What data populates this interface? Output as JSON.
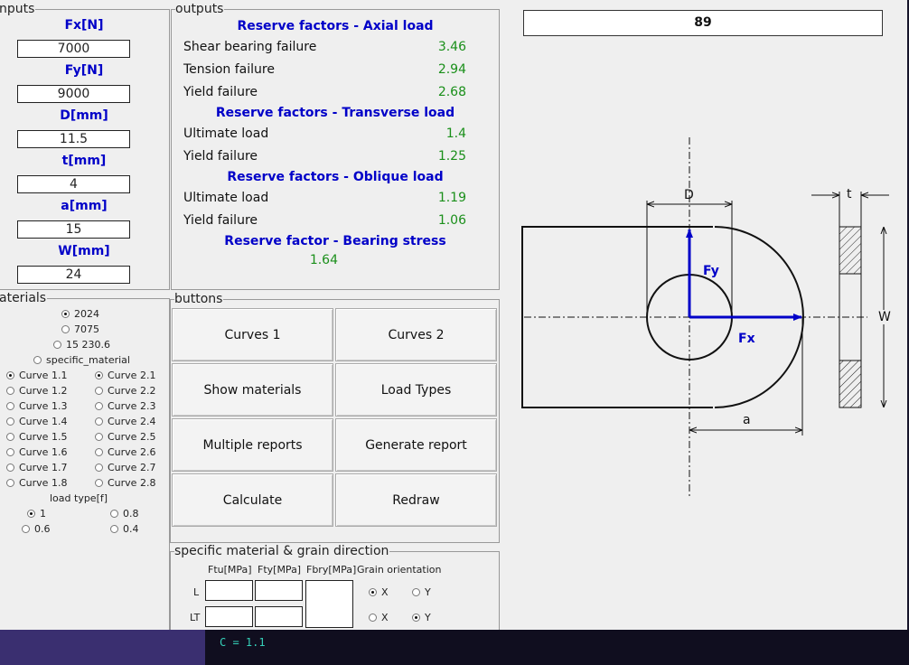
{
  "inputs": {
    "title": "nputs",
    "fields": [
      {
        "label": "Fx[N]",
        "value": "7000"
      },
      {
        "label": "Fy[N]",
        "value": "9000"
      },
      {
        "label": "D[mm]",
        "value": "11.5"
      },
      {
        "label": "t[mm]",
        "value": "4"
      },
      {
        "label": "a[mm]",
        "value": "15"
      },
      {
        "label": "W[mm]",
        "value": "24"
      }
    ]
  },
  "outputs": {
    "title": "outputs",
    "axial_title": "Reserve factors - Axial load",
    "axial": [
      {
        "label": "Shear bearing failure",
        "value": "3.46"
      },
      {
        "label": "Tension failure",
        "value": "2.94"
      },
      {
        "label": "Yield failure",
        "value": "2.68"
      }
    ],
    "transverse_title": "Reserve factors - Transverse load",
    "transverse": [
      {
        "label": "Ultimate load",
        "value": "1.4"
      },
      {
        "label": "Yield failure",
        "value": "1.25"
      }
    ],
    "oblique_title": "Reserve factors - Oblique load",
    "oblique": [
      {
        "label": "Ultimate load",
        "value": "1.19"
      },
      {
        "label": "Yield failure",
        "value": "1.06"
      }
    ],
    "bearing_title": "Reserve factor - Bearing stress",
    "bearing_value": "1.64"
  },
  "materials": {
    "title": "aterials",
    "options": [
      "2024",
      "7075",
      "15 230.6",
      "specific_material"
    ],
    "selected": "2024",
    "curves_1": [
      "Curve 1.1",
      "Curve 1.2",
      "Curve 1.3",
      "Curve 1.4",
      "Curve 1.5",
      "Curve 1.6",
      "Curve 1.7",
      "Curve 1.8"
    ],
    "curves_2": [
      "Curve 2.1",
      "Curve 2.2",
      "Curve 2.3",
      "Curve 2.4",
      "Curve 2.5",
      "Curve 2.6",
      "Curve 2.7",
      "Curve 2.8"
    ],
    "selected_curve_1": "Curve 1.1",
    "selected_curve_2": "Curve 2.1",
    "load_type_label": "load type[f]",
    "load_types": [
      "1",
      "0.8",
      "0.6",
      "0.4"
    ],
    "selected_load_type": "1"
  },
  "buttons": {
    "title": "buttons",
    "curves1": "Curves 1",
    "curves2": "Curves 2",
    "show_materials": "Show materials",
    "load_types": "Load Types",
    "multiple_reports": "Multiple reports",
    "generate_report": "Generate report",
    "calculate": "Calculate",
    "redraw": "Redraw"
  },
  "specific": {
    "title": "specific material & grain direction",
    "col_ftu": "Ftu[MPa]",
    "col_fty": "Fty[MPa]",
    "col_fbry": "Fbry[MPa]",
    "col_grain": "Grain orientation",
    "row_l": "L",
    "row_lt": "LT",
    "x": "X",
    "y": "Y",
    "l_selected": "X",
    "lt_selected": "Y"
  },
  "drawing": {
    "angle_display": "89",
    "label_d": "D",
    "label_t": "t",
    "label_w": "W",
    "label_a": "a",
    "label_fx": "Fx",
    "label_fy": "Fy",
    "force_color": "#0000c8"
  },
  "terminal": {
    "line": "C = 1.1"
  }
}
